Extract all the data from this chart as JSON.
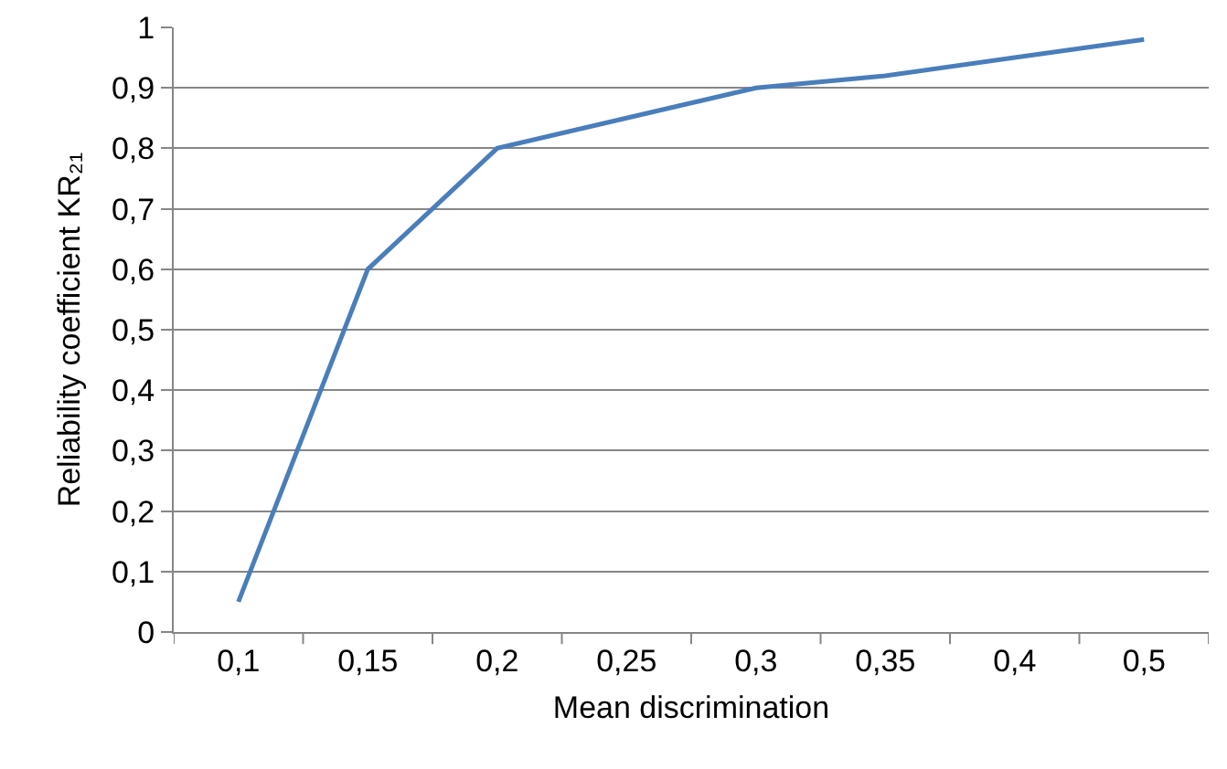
{
  "chart_data": {
    "type": "line",
    "xlabel": "Mean discrimination",
    "ylabel": "Reliability coefficient KR₂₁",
    "categories": [
      "0,1",
      "0,15",
      "0,2",
      "0,25",
      "0,3",
      "0,35",
      "0,4",
      "0,5"
    ],
    "series": [
      {
        "color": "#4a7ebb",
        "values": [
          0.05,
          0.6,
          0.8,
          0.85,
          0.9,
          0.92,
          0.95,
          0.98
        ]
      }
    ],
    "ylim": [
      0,
      1
    ],
    "yticks": [
      {
        "value": 0,
        "label": "0"
      },
      {
        "value": 0.1,
        "label": "0,1"
      },
      {
        "value": 0.2,
        "label": "0,2"
      },
      {
        "value": 0.3,
        "label": "0,3"
      },
      {
        "value": 0.4,
        "label": "0,4"
      },
      {
        "value": 0.5,
        "label": "0,5"
      },
      {
        "value": 0.6,
        "label": "0,6"
      },
      {
        "value": 0.7,
        "label": "0,7"
      },
      {
        "value": 0.8,
        "label": "0,8"
      },
      {
        "value": 0.9,
        "label": "0,9"
      },
      {
        "value": 1,
        "label": "1"
      }
    ],
    "grid": "y",
    "legend": false,
    "marker": "none",
    "line_style": "solid"
  }
}
